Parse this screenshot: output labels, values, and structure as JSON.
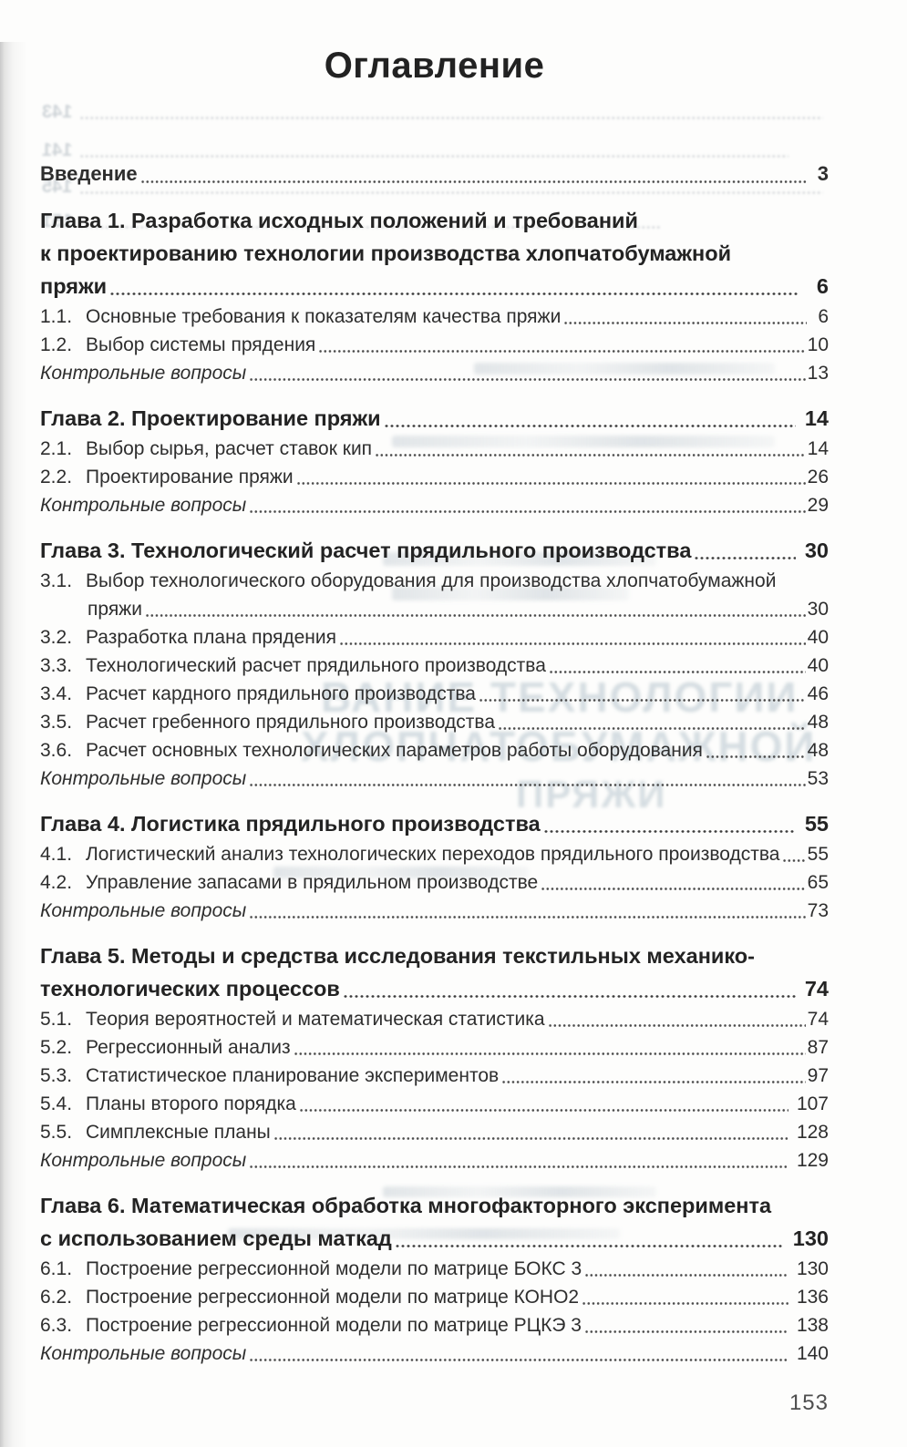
{
  "page": {
    "title": "Оглавление",
    "folio": "153"
  },
  "toc": {
    "entries": [
      {
        "kind": "intro",
        "text": "Введение",
        "page": "3"
      },
      {
        "kind": "chapter",
        "lines": [
          "Глава 1. Разработка исходных положений и требований",
          "к проектированию технологии производства хлопчатобумажной"
        ],
        "text": "пряжи",
        "page": "6"
      },
      {
        "kind": "section",
        "num": "1.1.",
        "text": "Основные требования к показателям качества пряжи",
        "page": "6"
      },
      {
        "kind": "section",
        "num": "1.2.",
        "text": "Выбор системы прядения",
        "page": "10"
      },
      {
        "kind": "questions",
        "text": "Контрольные вопросы",
        "page": "13"
      },
      {
        "kind": "chapter",
        "text": "Глава 2. Проектирование пряжи",
        "page": "14"
      },
      {
        "kind": "section",
        "num": "2.1.",
        "text": "Выбор сырья, расчет ставок кип",
        "page": "14"
      },
      {
        "kind": "section",
        "num": "2.2.",
        "text": "Проектирование пряжи",
        "page": "26"
      },
      {
        "kind": "questions",
        "text": "Контрольные вопросы",
        "page": "29"
      },
      {
        "kind": "chapter",
        "text": "Глава 3. Технологический расчет прядильного производства",
        "page": "30"
      },
      {
        "kind": "section",
        "num": "3.1.",
        "lines": [
          "Выбор технологического оборудования для производства хлопчатобумажной"
        ],
        "text": "пряжи",
        "page": "30"
      },
      {
        "kind": "section",
        "num": "3.2.",
        "text": "Разработка плана прядения",
        "page": "40"
      },
      {
        "kind": "section",
        "num": "3.3.",
        "text": "Технологический расчет прядильного производства",
        "page": "40"
      },
      {
        "kind": "section",
        "num": "3.4.",
        "text": "Расчет кардного прядильного производства",
        "page": "46"
      },
      {
        "kind": "section",
        "num": "3.5.",
        "text": "Расчет гребенного прядильного производства",
        "page": "48"
      },
      {
        "kind": "section",
        "num": "3.6.",
        "text": "Расчет основных технологических параметров работы оборудования",
        "page": "48"
      },
      {
        "kind": "questions",
        "text": "Контрольные вопросы",
        "page": "53"
      },
      {
        "kind": "chapter",
        "text": "Глава 4. Логистика прядильного производства",
        "page": "55"
      },
      {
        "kind": "section",
        "num": "4.1.",
        "text": "Логистический анализ технологических переходов прядильного производства",
        "page": "55"
      },
      {
        "kind": "section",
        "num": "4.2.",
        "text": "Управление запасами в прядильном производстве",
        "page": "65"
      },
      {
        "kind": "questions",
        "text": "Контрольные вопросы",
        "page": "73"
      },
      {
        "kind": "chapter",
        "lines": [
          "Глава 5. Методы и средства исследования текстильных механико-"
        ],
        "text": "технологических процессов",
        "page": "74"
      },
      {
        "kind": "section",
        "num": "5.1.",
        "text": "Теория вероятностей и математическая статистика",
        "page": "74"
      },
      {
        "kind": "section",
        "num": "5.2.",
        "text": "Регрессионный анализ",
        "page": "87"
      },
      {
        "kind": "section",
        "num": "5.3.",
        "text": "Статистическое планирование экспериментов",
        "page": "97"
      },
      {
        "kind": "section",
        "num": "5.4.",
        "text": "Планы второго порядка",
        "page": "107"
      },
      {
        "kind": "section",
        "num": "5.5.",
        "text": "Симплексные планы",
        "page": "128"
      },
      {
        "kind": "questions",
        "text": "Контрольные вопросы",
        "page": "129"
      },
      {
        "kind": "chapter",
        "lines": [
          "Глава 6. Математическая обработка многофакторного эксперимента"
        ],
        "text": "с использованием среды маткад",
        "page": "130"
      },
      {
        "kind": "section",
        "num": "6.1.",
        "text": "Построение регрессионной модели по матрице БОКС 3",
        "page": "130"
      },
      {
        "kind": "section",
        "num": "6.2.",
        "text": "Построение регрессионной модели по матрице КОНО2",
        "page": "136"
      },
      {
        "kind": "section",
        "num": "6.3.",
        "text": "Построение регрессионной модели по матрице РЦКЭ 3",
        "page": "138"
      },
      {
        "kind": "questions",
        "text": "Контрольные вопросы",
        "page": "140"
      }
    ]
  },
  "bleedthrough": {
    "top_nums": [
      "143",
      "141",
      "145",
      "151"
    ],
    "title_lines": [
      "ВАНИЕ ТЕХНОЛОГИИ",
      "ХЛОПЧАТОБУМАЖНОЙ",
      "ПРЯЖИ"
    ]
  }
}
